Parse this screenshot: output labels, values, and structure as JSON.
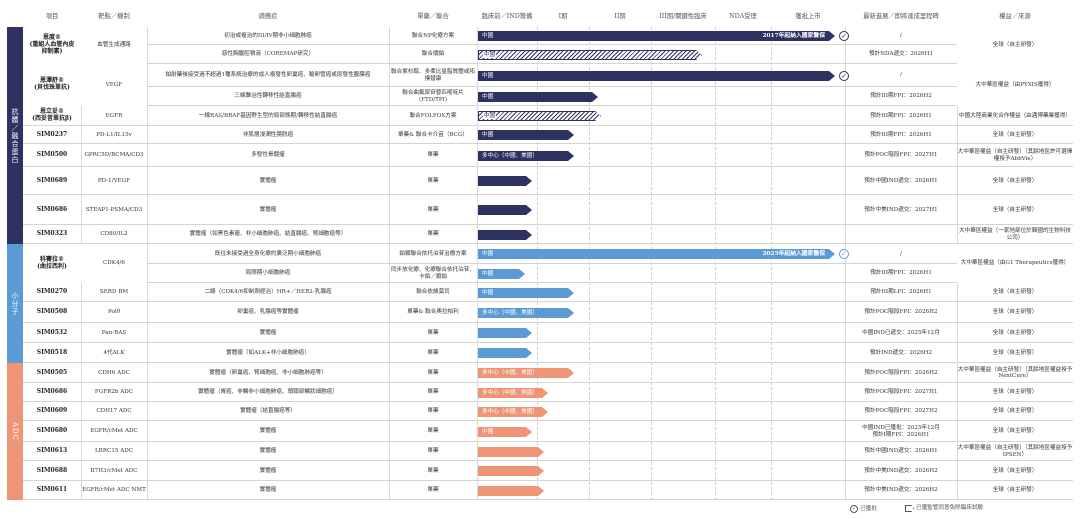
{
  "headers": {
    "project": "項目",
    "target": "靶點／機制",
    "indication": "適應症",
    "mono_combo": "單藥／聯合",
    "preclinical": "臨床前／IND籌備",
    "phase1": "I期",
    "phase2": "II期",
    "phase3": "III期/關鍵性臨床",
    "nda": "NDA受理",
    "approved": "獲批上市",
    "latest": "最新進展／即將達成里程碑",
    "rights": "權益／來源"
  },
  "categories": [
    {
      "label": "抗體／融合蛋白",
      "color": "#2e3262"
    },
    {
      "label": "小分子",
      "color": "#5b9bd5"
    },
    {
      "label": "ADC",
      "color": "#ef9577"
    }
  ],
  "rows": [
    {
      "name": "恩度®\n(重組人血管內皮\n抑制素)",
      "target": "血管生成通路",
      "indication": "初治或複治的III/IV期非小細胞肺癌",
      "mono": "聯合NP化療方案",
      "bar_label": "中國",
      "bar_end": "2017年起納入國家醫保",
      "latest": "/",
      "rights": "全球（自主研發）"
    },
    {
      "name": "",
      "target": "",
      "indication": "惡性胸腹腔積液（COREMAP研究）",
      "mono": "聯合順鉑",
      "bar_label": "中國",
      "bar_end": "",
      "latest": "預計NDA遞交：2026H1",
      "rights": ""
    },
    {
      "name": "恩澤舒®\n(貝伐珠單抗)",
      "target": "VEGF",
      "indication": "鉑耐藥後接受過不超過1種系統治療的成人複發性卵巢癌、輸卵管癌或原發性腹膜癌",
      "mono": "聯合紫杉醇、多柔比星脂質體或拓撲替康",
      "bar_label": "中國",
      "bar_end": "",
      "latest": "/",
      "rights": "大中華區權益（由PYXIS獲得）"
    },
    {
      "name": "",
      "target": "",
      "indication": "三線難治性轉移性結直腸癌",
      "mono": "聯合曲氟尿苷替匹嘧啶片(FTD/TPI)",
      "bar_label": "中國",
      "bar_end": "",
      "latest": "預計III期FPI：2026H2",
      "rights": ""
    },
    {
      "name": "恩立妥®\n(西妥昔單抗β)",
      "target": "EGFR",
      "indication": "一線RAS/BRAF基因野生型的局部晚期/轉移性結直腸癌",
      "mono": "聯合FOLFOX方案",
      "bar_label": "中國",
      "bar_end": "",
      "latest": "預計III期FPI：2026H1",
      "rights": "中國大陸商業化合作權益（由邁博藥業獲得）"
    },
    {
      "name": "SIM0237",
      "target": "PD-L1/IL15v",
      "indication": "非肌層浸潤性膀胱癌",
      "mono": "單藥& 聯合卡介苗（BCG）",
      "bar_label": "中國",
      "bar_end": "",
      "latest": "預計III期FPI：2026H1",
      "rights": "全球（自主研發）"
    },
    {
      "name": "SIM0500",
      "target": "GPRC5D/BCMA/CD3",
      "indication": "多發性骨髓瘤",
      "mono": "單藥",
      "bar_label": "多中心（中國、美國）",
      "bar_end": "",
      "latest": "預計POC階段FPI：2027H1",
      "rights": "大中華區權益（自主研發）（其餘地區許可選擇權授予AbbVie）"
    },
    {
      "name": "SIM0689",
      "target": "PD-1/VEGF",
      "indication": "實體瘤",
      "mono": "單藥",
      "bar_label": "",
      "bar_end": "",
      "latest": "預計中國IND遞交：2026H1",
      "rights": "全球（自主研發）"
    },
    {
      "name": "SIM0686",
      "target": "STEAP1-PSMA/CD3",
      "indication": "實體瘤",
      "mono": "單藥",
      "bar_label": "",
      "bar_end": "",
      "latest": "預計中美IND遞交：2027H1",
      "rights": "全球（自主研發）"
    },
    {
      "name": "SIM0323",
      "target": "CD80/IL2",
      "indication": "實體瘤（如黑色素瘤、非小細胞肺癌、結直腸癌、腎細胞癌等）",
      "mono": "單藥",
      "bar_label": "",
      "bar_end": "",
      "latest": "",
      "rights": "大中華區權益（一家地部位於韓國的生物科技公司）"
    },
    {
      "name": "科賽拉®\n(曲拉西利)",
      "target": "CDK4/6",
      "indication": "既往未接受過全身化療的廣泛期小細胞肺癌",
      "mono": "鉑類聯合依托泊苷治療方案",
      "bar_label": "中國",
      "bar_end": "2025年起納入國家醫保",
      "latest": "/",
      "rights": "大中華區權益（由G1 Therapeutics獲得）"
    },
    {
      "name": "",
      "target": "",
      "indication": "局限期小細胞肺癌",
      "mono": "同步放化療、化療聯合依托泊苷、卡鉑／順鉑",
      "bar_label": "中國",
      "bar_end": "",
      "latest": "預計III期FPI：2026H1",
      "rights": ""
    },
    {
      "name": "SIM0270",
      "target": "SERD BM",
      "indication": "二線（CDK4/6抑制劑經治）HR+／HER2-乳腺癌",
      "mono": "聯合依維莫司",
      "bar_label": "中國",
      "bar_end": "",
      "latest": "預計III期LPI：2026H1",
      "rights": "全球（自主研發）"
    },
    {
      "name": "SIM0508",
      "target": "Polθ",
      "indication": "卵巢癌、乳腺癌等實體瘤",
      "mono": "單藥& 聯合奧拉帕利",
      "bar_label": "多中心（中國、美國）",
      "bar_end": "",
      "latest": "預計POC階段FPI：2026H2",
      "rights": "全球（自主研發）"
    },
    {
      "name": "SIM0532",
      "target": "Pan-RAS",
      "indication": "實體瘤",
      "mono": "單藥",
      "bar_label": "",
      "bar_end": "",
      "latest": "中國IND已遞交：2025年12月",
      "rights": "全球（自主研發）"
    },
    {
      "name": "SIM0518",
      "target": "4代ALK",
      "indication": "實體瘤（如ALK+非小細胞肺癌）",
      "mono": "單藥",
      "bar_label": "",
      "bar_end": "",
      "latest": "預計IND遞交：2026H2",
      "rights": "全球（自主研發）"
    },
    {
      "name": "SIM0505",
      "target": "CDH6 ADC",
      "indication": "實體瘤（卵巢癌、腎細胞癌、非小細胞肺癌等）",
      "mono": "單藥",
      "bar_label": "多中心（中國、美國）",
      "bar_end": "",
      "latest": "預計POC階段FPI：2026H2",
      "rights": "大中華區權益（自主研發）（其餘地區權益授予NextCure）"
    },
    {
      "name": "SIM0686",
      "target": "FGFR2b ADC",
      "indication": "實體瘤（胃癌、非鱗非小細胞肺癌、頭頸部鱗狀細胞癌）",
      "mono": "單藥",
      "bar_label": "多中心（中國、美國）",
      "bar_end": "",
      "latest": "預計POC階段FPI：2027H1",
      "rights": "全球（自主研發）"
    },
    {
      "name": "SIM0609",
      "target": "CDH17 ADC",
      "indication": "實體瘤（結直腸癌等）",
      "mono": "單藥",
      "bar_label": "多中心（中國、美國）",
      "bar_end": "",
      "latest": "預計POC階段FPI：2027H2",
      "rights": "全球（自主研發）"
    },
    {
      "name": "SIM0680",
      "target": "EGFR/cMet ADC",
      "indication": "實體瘤",
      "mono": "單藥",
      "bar_label": "中國",
      "bar_end": "",
      "latest": "中國IND已獲批：2025年12月\n預計I期FPI：2026H1",
      "rights": "全球（自主研發）"
    },
    {
      "name": "SIM0613",
      "target": "LRRC15 ADC",
      "indication": "實體瘤",
      "mono": "單藥",
      "bar_label": "",
      "bar_end": "",
      "latest": "預計中國IND遞交：2026H1",
      "rights": "大中華區權益（自主研發）（其餘地區權益授予IPSEN）"
    },
    {
      "name": "SIM0688",
      "target": "B7H3/cMet ADC",
      "indication": "實體瘤",
      "mono": "單藥",
      "bar_label": "",
      "bar_end": "",
      "latest": "預計中美IND遞交：2026H2",
      "rights": "全球（自主研發）"
    },
    {
      "name": "SIM0611",
      "target": "EGFR/cMet ADC NMT",
      "indication": "實體瘤",
      "mono": "單藥",
      "bar_label": "",
      "bar_end": "",
      "latest": "預計中美IND遞交：2026H2",
      "rights": "全球（自主研發）"
    }
  ],
  "legend": {
    "approved": "已獲批",
    "waived": "已獲監管同意免除臨床試驗",
    "check_icon": "check-circle-icon",
    "waived_icon": "arrow-box-icon"
  }
}
